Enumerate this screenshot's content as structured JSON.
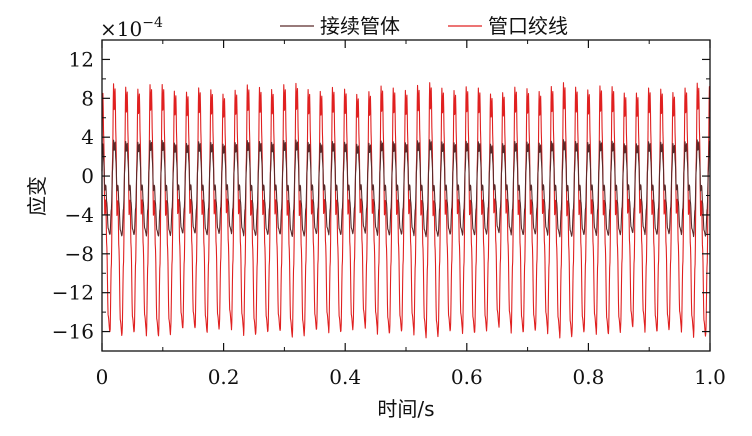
{
  "chart_data": {
    "type": "line",
    "xlabel": "时间/s",
    "ylabel": "应变",
    "y_multiplier": "×10",
    "y_multiplier_exp": "−4",
    "xlim": [
      0,
      1.0
    ],
    "ylim": [
      -18,
      14
    ],
    "x_ticks": [
      0,
      0.2,
      0.4,
      0.6,
      0.8,
      1.0
    ],
    "x_tick_labels": [
      "0",
      "0.2",
      "0.4",
      "0.6",
      "0.8",
      "1.0"
    ],
    "y_ticks": [
      -16,
      -12,
      -8,
      -4,
      0,
      4,
      8,
      12
    ],
    "y_tick_labels": [
      "−16",
      "−12",
      "−8",
      "−4",
      "0",
      "4",
      "8",
      "12"
    ],
    "grid": false,
    "legend_position": "top",
    "cycles_over_range": 50,
    "series": [
      {
        "name": "接续管体",
        "color": "#5a2a2a",
        "max": 4.8,
        "min": -6.8,
        "typical_peak": 3.5,
        "typical_trough": -6.0
      },
      {
        "name": "管口绞线",
        "color": "#e02020",
        "max": 12.5,
        "min": -17.0,
        "typical_peak": 9.0,
        "typical_trough": -16.0
      }
    ]
  }
}
